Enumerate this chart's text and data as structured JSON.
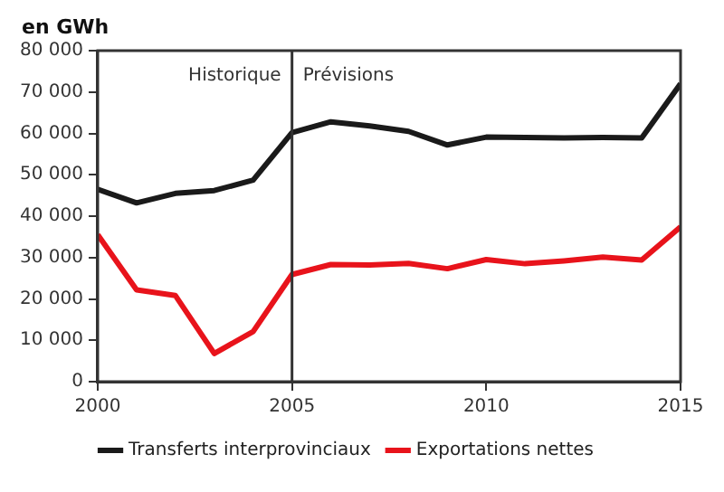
{
  "chart_data": {
    "type": "line",
    "ylabel": "en GWh",
    "x": [
      2000,
      2001,
      2002,
      2003,
      2004,
      2005,
      2006,
      2007,
      2008,
      2009,
      2010,
      2011,
      2012,
      2013,
      2014,
      2015
    ],
    "series": [
      {
        "name": "Transferts interprovinciaux",
        "color": "#1a1a1a",
        "values": [
          46500,
          43200,
          45500,
          46200,
          48700,
          60200,
          62800,
          61800,
          60500,
          57200,
          59100,
          59000,
          58900,
          59000,
          58900,
          72000
        ]
      },
      {
        "name": "Exportations nettes",
        "color": "#e8131b",
        "values": [
          35500,
          22200,
          20800,
          6800,
          12100,
          25900,
          28300,
          28200,
          28600,
          27300,
          29500,
          28500,
          29200,
          30100,
          29400,
          37400
        ]
      }
    ],
    "xlim": [
      2000,
      2015
    ],
    "xticks": [
      2000,
      2005,
      2010,
      2015
    ],
    "ylim": [
      0,
      80000
    ],
    "yticks": [
      0,
      {
        "value": 10000,
        "label": "10 000"
      },
      {
        "value": 20000,
        "label": "20 000"
      },
      {
        "value": 30000,
        "label": "30 000"
      },
      {
        "value": 40000,
        "label": "40 000"
      },
      {
        "value": 50000,
        "label": "50 000"
      },
      {
        "value": 60000,
        "label": "60 000"
      },
      {
        "value": 70000,
        "label": "70 000"
      },
      {
        "value": 80000,
        "label": "80 000"
      }
    ],
    "ref_lines": [
      {
        "axis": "x",
        "value": 2005,
        "color": "#333333"
      }
    ],
    "annotations": [
      "Historique",
      "Prévisions"
    ],
    "legend": "bottom",
    "marker": "none",
    "line_style": "solid"
  }
}
